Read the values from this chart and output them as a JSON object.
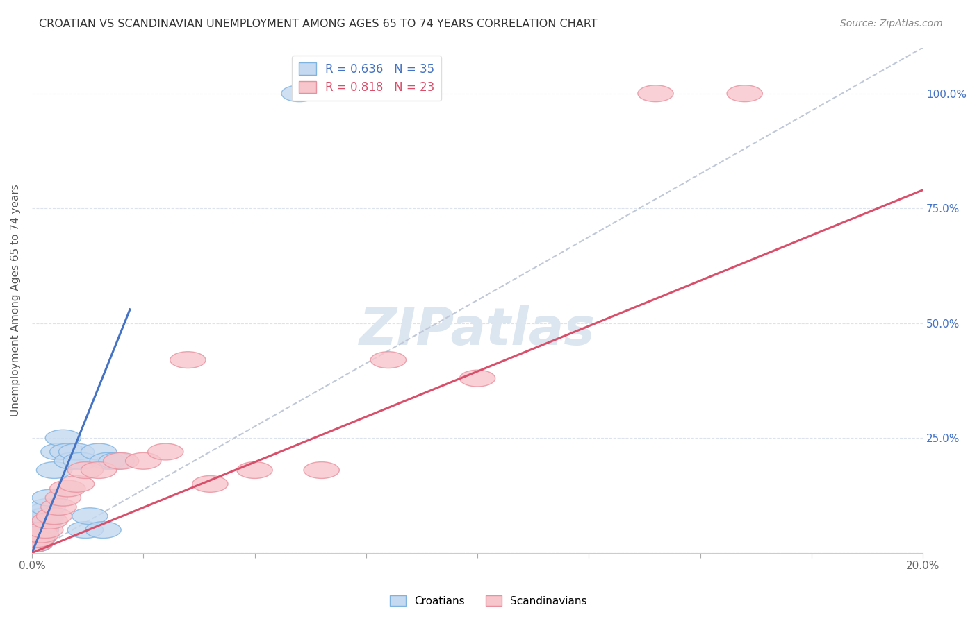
{
  "title": "CROATIAN VS SCANDINAVIAN UNEMPLOYMENT AMONG AGES 65 TO 74 YEARS CORRELATION CHART",
  "source": "Source: ZipAtlas.com",
  "ylabel": "Unemployment Among Ages 65 to 74 years",
  "xlim": [
    0.0,
    0.2
  ],
  "ylim": [
    0.0,
    1.1
  ],
  "xtick_positions": [
    0.0,
    0.025,
    0.05,
    0.075,
    0.1,
    0.125,
    0.15,
    0.175,
    0.2
  ],
  "xtick_labels": [
    "0.0%",
    "",
    "",
    "",
    "",
    "",
    "",
    "",
    "20.0%"
  ],
  "ytick_positions": [
    0.0,
    0.25,
    0.5,
    0.75,
    1.0
  ],
  "ytick_labels_right": [
    "",
    "25.0%",
    "50.0%",
    "75.0%",
    "100.0%"
  ],
  "croatians_x": [
    0.0003,
    0.0005,
    0.0007,
    0.001,
    0.001,
    0.0012,
    0.0013,
    0.0014,
    0.0015,
    0.0016,
    0.0017,
    0.002,
    0.002,
    0.002,
    0.0022,
    0.0025,
    0.003,
    0.003,
    0.0032,
    0.0035,
    0.004,
    0.005,
    0.006,
    0.007,
    0.008,
    0.009,
    0.01,
    0.011,
    0.012,
    0.013,
    0.015,
    0.016,
    0.017,
    0.019,
    0.06
  ],
  "croatians_y": [
    0.02,
    0.02,
    0.02,
    0.03,
    0.04,
    0.03,
    0.04,
    0.05,
    0.04,
    0.05,
    0.06,
    0.05,
    0.06,
    0.07,
    0.06,
    0.08,
    0.07,
    0.09,
    0.08,
    0.1,
    0.12,
    0.18,
    0.22,
    0.25,
    0.22,
    0.2,
    0.22,
    0.2,
    0.05,
    0.08,
    0.22,
    0.05,
    0.2,
    0.2,
    1.0
  ],
  "scandinavians_x": [
    0.0005,
    0.001,
    0.002,
    0.003,
    0.004,
    0.005,
    0.006,
    0.007,
    0.008,
    0.01,
    0.012,
    0.015,
    0.02,
    0.025,
    0.03,
    0.035,
    0.04,
    0.05,
    0.065,
    0.08,
    0.1,
    0.14,
    0.16
  ],
  "scandinavians_y": [
    0.02,
    0.03,
    0.04,
    0.05,
    0.07,
    0.08,
    0.1,
    0.12,
    0.14,
    0.15,
    0.18,
    0.18,
    0.2,
    0.2,
    0.22,
    0.42,
    0.15,
    0.18,
    0.18,
    0.42,
    0.38,
    1.0,
    1.0
  ],
  "croatian_R": 0.636,
  "croatian_N": 35,
  "scandinavian_R": 0.818,
  "scandinavian_N": 23,
  "color_croatian_face": "#c5d9f0",
  "color_croatian_edge": "#7eb3e0",
  "color_scandinavian_face": "#f7c5cc",
  "color_scandinavian_edge": "#e8919e",
  "color_line_croatian": "#4472c4",
  "color_line_scandinavian": "#d94f6a",
  "color_dashed": "#c0c8d8",
  "color_text_r_blue": "#4472c4",
  "color_text_r_pink": "#d94f6a",
  "color_text_n_blue": "#4472c4",
  "color_text_n_pink": "#d94f6a",
  "watermark_color": "#dce6f0",
  "background_color": "#ffffff",
  "grid_color": "#dde3ec",
  "line_croatian_slope": 16.0,
  "line_croatian_intercept": -0.02,
  "line_scandinavian_slope": 5.0,
  "line_scandinavian_intercept": -0.02
}
